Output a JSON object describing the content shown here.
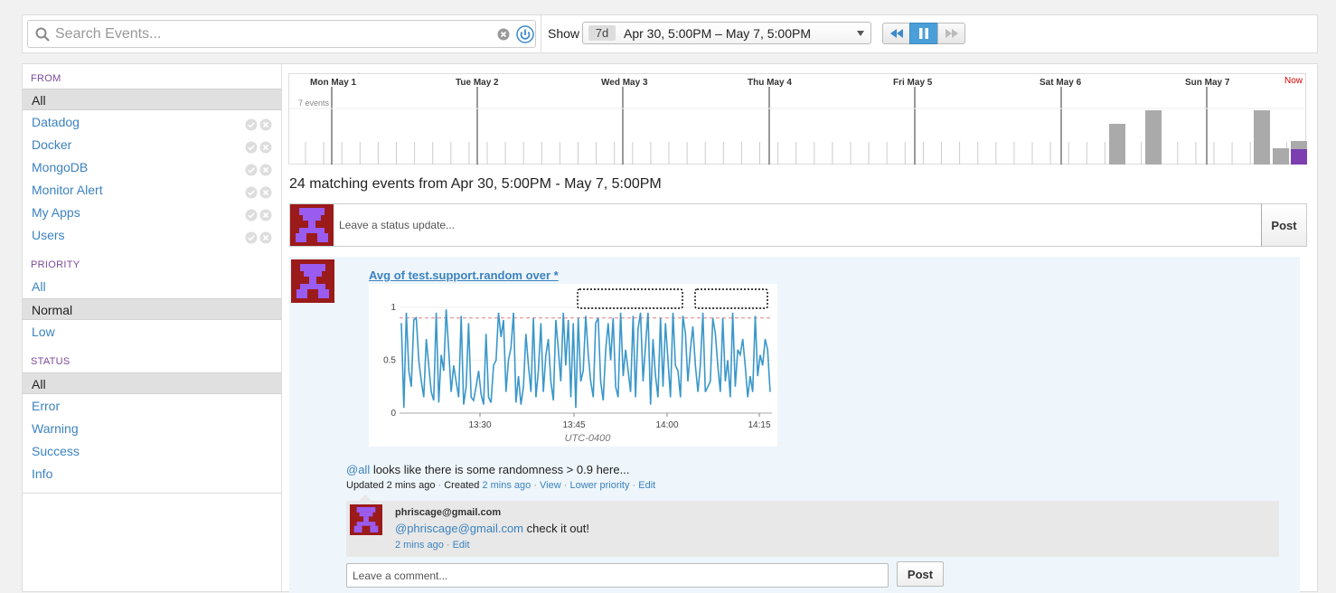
{
  "search": {
    "placeholder": "Search Events..."
  },
  "toolbar": {
    "show_label": "Show",
    "range_chip": "7d",
    "range_text": "Apr 30, 5:00PM – May 7, 5:00PM",
    "icons": {
      "search": "magnifier-icon",
      "clear": "clear-icon",
      "go": "power-icon",
      "rewind": "rewind-icon",
      "pause": "pause-icon",
      "forward": "forward-icon"
    }
  },
  "sidebar": {
    "from": {
      "heading": "FROM",
      "items": [
        {
          "label": "All",
          "selected": true
        },
        {
          "label": "Datadog"
        },
        {
          "label": "Docker"
        },
        {
          "label": "MongoDB"
        },
        {
          "label": "Monitor Alert"
        },
        {
          "label": "My Apps"
        },
        {
          "label": "Users"
        }
      ]
    },
    "priority": {
      "heading": "PRIORITY",
      "items": [
        {
          "label": "All"
        },
        {
          "label": "Normal",
          "selected": true
        },
        {
          "label": "Low"
        }
      ]
    },
    "status": {
      "heading": "STATUS",
      "items": [
        {
          "label": "All",
          "selected": true
        },
        {
          "label": "Error"
        },
        {
          "label": "Warning"
        },
        {
          "label": "Success"
        },
        {
          "label": "Info"
        }
      ]
    }
  },
  "timeline": {
    "days": [
      "Mon May 1",
      "Tue May 2",
      "Wed May 3",
      "Thu May 4",
      "Fri May 5",
      "Sat May 6",
      "Sun May 7"
    ],
    "now_label": "Now",
    "events_label": "7 events",
    "bar_color": "#aaaaaa",
    "highlight_color": "#7b3fb0"
  },
  "main": {
    "matching": "24 matching events from Apr 30, 5:00PM - May 7, 5:00PM",
    "status_placeholder": "Leave a status update...",
    "post_label": "Post"
  },
  "event": {
    "title": "Avg of test.support.random over *",
    "text_mention": "@all",
    "text_rest": " looks like there is some randomness > 0.9 here...",
    "meta": {
      "updated": "Updated 2 mins ago",
      "created_prefix": "Created ",
      "created_time": "2 mins ago",
      "view": "View",
      "lower_priority": "Lower priority",
      "edit": "Edit",
      "separator": " · "
    },
    "comment": {
      "author": "phriscage@gmail.com",
      "mention": "@phriscage@gmail.com",
      "text": " check it out!",
      "time": "2 mins ago",
      "edit": "Edit"
    },
    "comment_placeholder": "Leave a comment...",
    "comment_post": "Post"
  },
  "chart_data": {
    "type": "line",
    "x_ticks": [
      "13:30",
      "13:45",
      "14:00",
      "14:15"
    ],
    "y_ticks": [
      "0",
      "0.5",
      "1"
    ],
    "ylim": [
      0,
      1
    ],
    "threshold": 0.9,
    "xlabel": "UTC-0400",
    "line_color": "#3a97c9",
    "threshold_color": "#e08080",
    "series": [
      {
        "values": [
          0.85,
          0.05,
          0.95,
          0.4,
          0.25,
          0.88,
          0.9,
          0.5,
          0.3,
          0.15,
          0.7,
          0.45,
          0.2,
          0.12,
          0.95,
          0.1,
          0.55,
          0.4,
          0.98,
          0.6,
          0.2,
          0.45,
          0.3,
          0.15,
          0.92,
          0.08,
          0.25,
          0.85,
          0.15,
          0.12,
          0.25,
          0.4,
          0.18,
          0.08,
          0.75,
          0.15,
          0.1,
          0.45,
          0.5,
          0.95,
          0.72,
          0.88,
          0.2,
          0.5,
          0.62,
          0.95,
          0.1,
          0.35,
          0.08,
          0.25,
          0.75,
          0.45,
          0.2,
          0.9,
          0.15,
          0.4,
          0.85,
          0.2,
          0.55,
          0.7,
          0.3,
          0.12,
          0.88,
          0.6,
          0.3,
          0.95,
          0.45,
          0.88,
          0.15,
          0.85,
          0.05,
          0.9,
          0.3,
          0.4,
          0.92,
          0.55,
          0.3,
          0.15,
          0.85,
          0.9,
          0.3,
          0.12,
          0.6,
          0.85,
          0.5,
          0.9,
          0.25,
          0.15,
          0.95,
          0.35,
          0.6,
          0.4,
          0.2,
          0.92,
          0.15,
          0.8,
          0.95,
          0.3,
          0.65,
          0.95,
          0.08,
          0.7,
          0.35,
          0.15,
          0.9,
          0.25,
          0.85,
          0.5,
          0.15,
          0.95,
          0.45,
          0.4,
          0.15,
          0.92,
          0.75,
          0.3,
          0.6,
          0.82,
          0.45,
          0.2,
          0.45,
          0.95,
          0.2,
          0.25,
          0.3,
          0.9,
          0.75,
          0.45,
          0.2,
          0.9,
          0.3,
          0.5,
          0.15,
          0.95,
          0.25,
          0.6,
          0.55,
          0.7,
          0.45,
          0.15,
          0.35,
          0.2,
          0.92,
          0.35,
          0.55,
          0.45,
          0.7,
          0.6,
          0.2
        ]
      }
    ]
  }
}
